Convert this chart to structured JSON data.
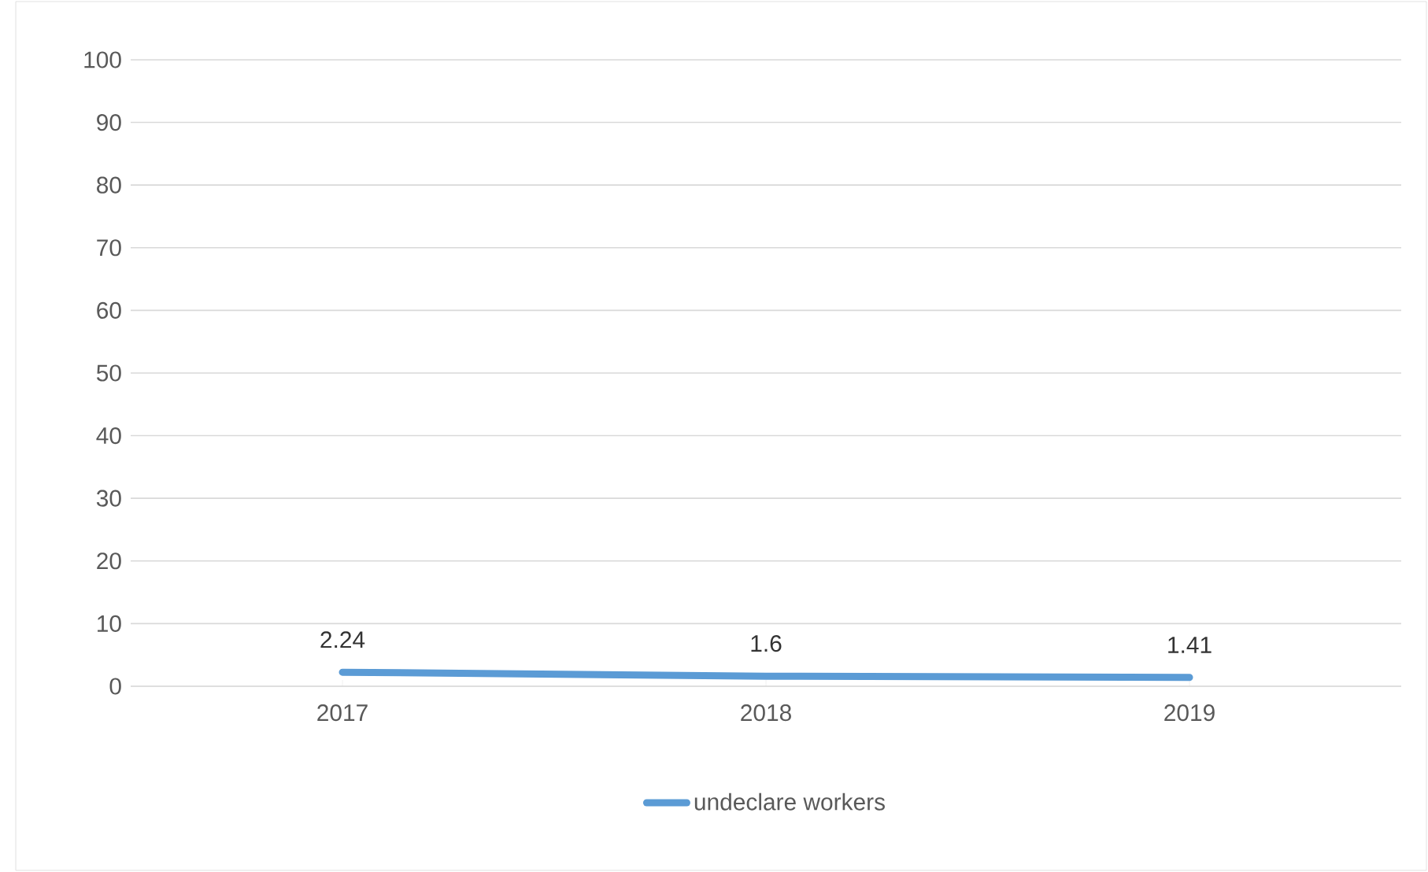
{
  "chart_data": {
    "type": "line",
    "categories": [
      "2017",
      "2018",
      "2019"
    ],
    "series": [
      {
        "name": "undeclare workers",
        "color": "#5b9bd5",
        "values": [
          2.24,
          1.6,
          1.41
        ],
        "value_labels": [
          "2.24",
          "1.6",
          "1.41"
        ]
      }
    ],
    "ylim": [
      0,
      100
    ],
    "yticks": [
      0,
      10,
      20,
      30,
      40,
      50,
      60,
      70,
      80,
      90,
      100
    ],
    "grid": "y",
    "legend": "bottom",
    "marker": "none",
    "line_style": "solid"
  }
}
